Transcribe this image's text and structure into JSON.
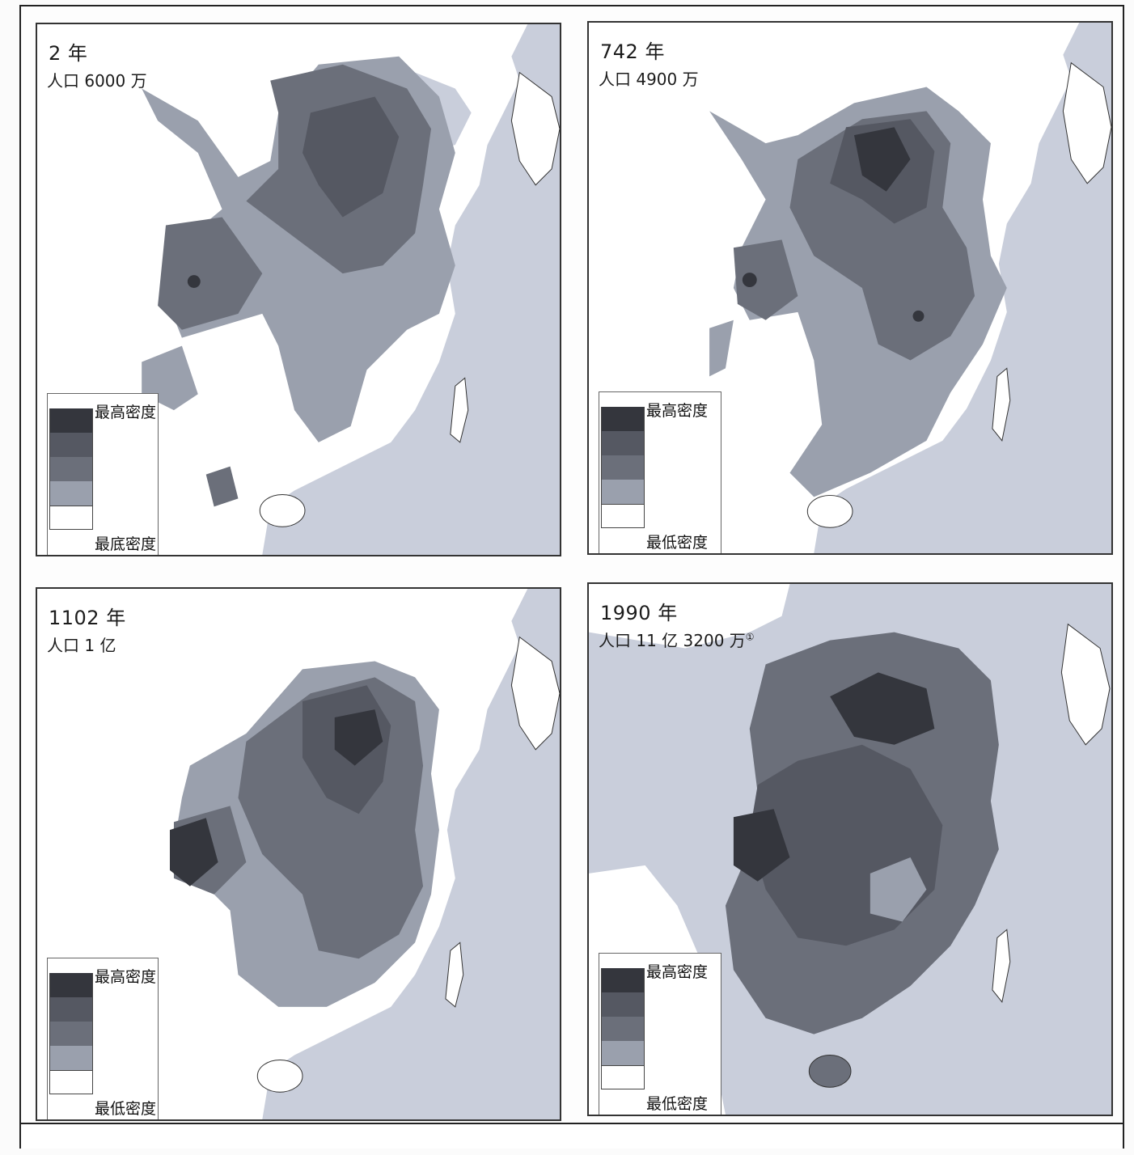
{
  "colors": {
    "sea": "#c9cedb",
    "land_empty": "#ffffff",
    "density_levels": [
      "#ffffff",
      "#9aa0ad",
      "#6b6f7a",
      "#555862",
      "#34363d"
    ]
  },
  "legend_order": [
    "highest",
    "level4",
    "level3",
    "level2",
    "lowest"
  ],
  "maps": [
    {
      "title": "2 年",
      "population": "人口 6000 万",
      "legend": {
        "high_label": "最高密度",
        "low_label": "最底密度"
      }
    },
    {
      "title": "742 年",
      "population": "人口 4900 万",
      "legend": {
        "high_label": "最高密度",
        "low_label": "最低密度"
      }
    },
    {
      "title": "1102 年",
      "population": "人口 1 亿",
      "legend": {
        "high_label": "最高密度",
        "low_label": "最低密度"
      }
    },
    {
      "title": "1990 年",
      "population": "人口 11 亿 3200 万",
      "footnote_mark": "①",
      "legend": {
        "high_label": "最高密度",
        "low_label": "最低密度"
      }
    }
  ]
}
